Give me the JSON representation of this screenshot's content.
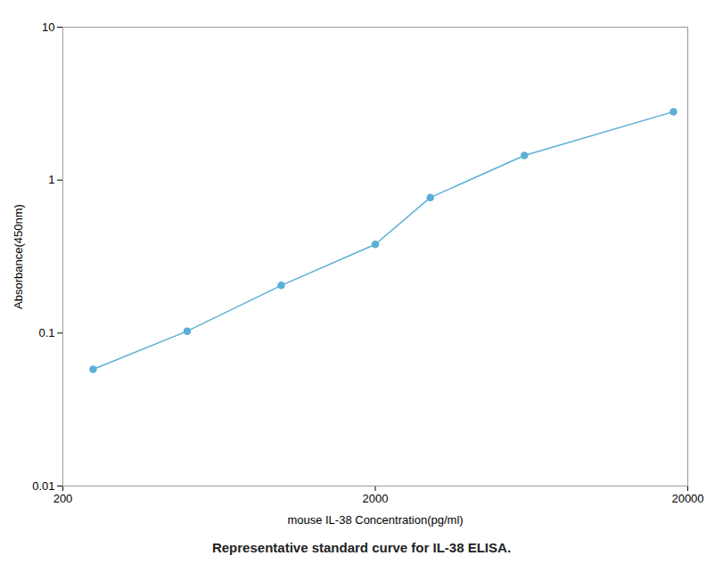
{
  "chart_data": {
    "type": "line",
    "x": [
      250,
      500,
      1000,
      2000,
      3000,
      6000,
      18000
    ],
    "values": [
      0.058,
      0.103,
      0.205,
      0.38,
      0.77,
      1.45,
      2.8
    ],
    "color": "#5bafd6",
    "marker": "circle",
    "xlabel": "mouse IL-38 Concentration(pg/ml)",
    "ylabel": "Absorbance(450nm)",
    "caption": "Representative standard curve for IL-38 ELISA.",
    "log": true,
    "xlim": [
      200,
      20000
    ],
    "ylim": [
      0.01,
      10
    ],
    "xticks": [
      200,
      2000,
      20000
    ],
    "yticks": [
      0.01,
      0.1,
      1,
      10
    ],
    "grid": false
  }
}
